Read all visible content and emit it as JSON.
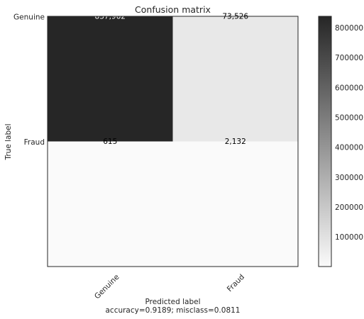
{
  "chart_data": {
    "type": "heatmap",
    "title": "Confusion matrix",
    "xlabel": "Predicted label",
    "ylabel": "True label",
    "subtitle": "accuracy=0.9189; misclass=0.0811",
    "x_categories": [
      "Genuine",
      "Fraud"
    ],
    "y_categories": [
      "Genuine",
      "Fraud"
    ],
    "values": [
      [
        837962,
        73526
      ],
      [
        615,
        2132
      ]
    ],
    "value_labels": [
      [
        "837,962",
        "73,526"
      ],
      [
        "615",
        "2,132"
      ]
    ],
    "colorbar": {
      "min": 615,
      "max": 837962,
      "ticks": [
        100000,
        200000,
        300000,
        400000,
        500000,
        600000,
        700000,
        800000
      ],
      "tick_labels": [
        "100000",
        "200000",
        "300000",
        "400000",
        "500000",
        "600000",
        "700000",
        "800000"
      ]
    },
    "colormap": {
      "low": "#fafafa",
      "high": "#262626"
    },
    "grid": false
  }
}
